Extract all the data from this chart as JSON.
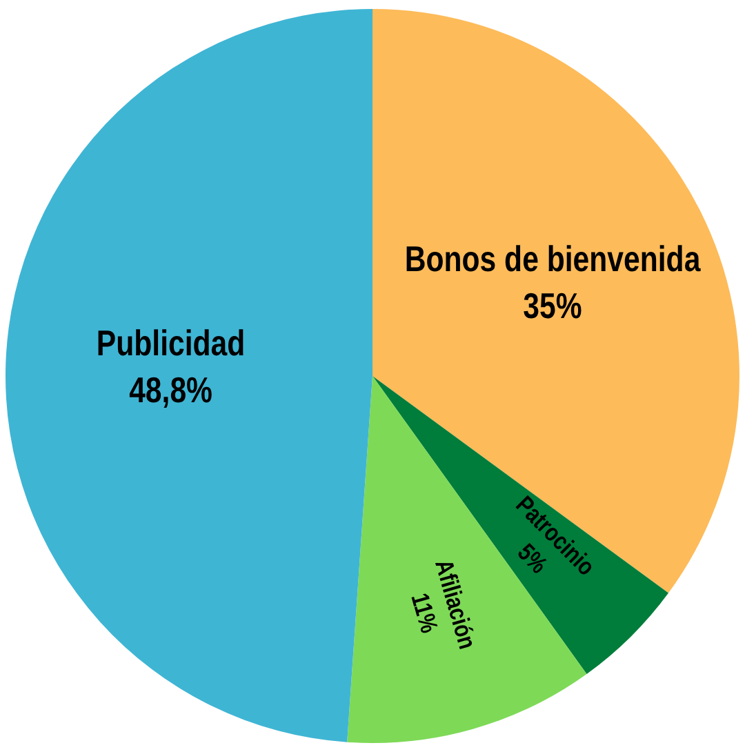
{
  "chart_data": {
    "type": "pie",
    "categories": [
      "Bonos de bienvenida",
      "Patrocinio",
      "Afiliación",
      "Publicidad"
    ],
    "values": [
      35,
      5,
      11,
      48.8
    ],
    "value_labels": [
      "35%",
      "5%",
      "11%",
      "48,8%"
    ],
    "colors": [
      "#fdbb5a",
      "#007d3a",
      "#7ed957",
      "#3fb5d4"
    ],
    "legend": false
  }
}
